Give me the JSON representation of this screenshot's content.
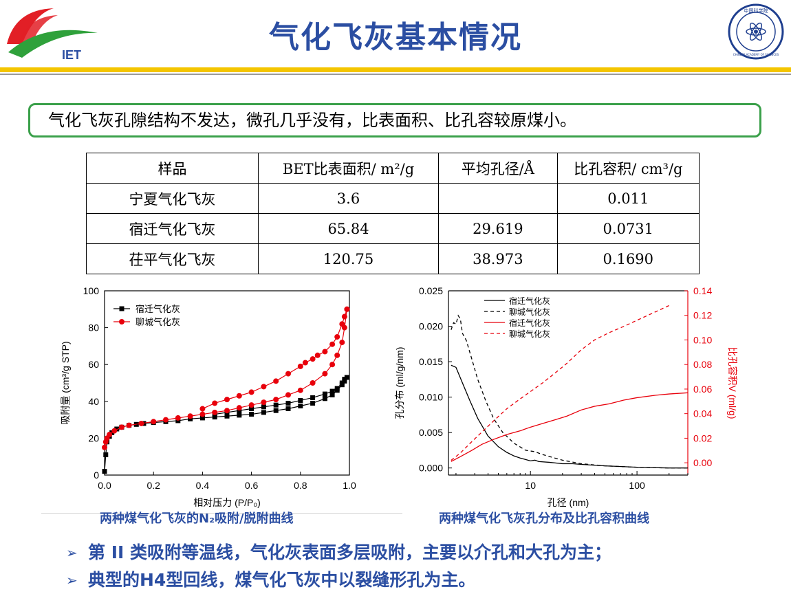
{
  "header": {
    "title": "气化飞灰基本情况",
    "logo_left_text": "IET",
    "logo_right_text": "中国科学院",
    "logo_right_ring": "CHINESE ACADEMY OF SCIENCES"
  },
  "summary": "气化飞灰孔隙结构不发达，微孔几乎没有，比表面积、比孔容较原煤小。",
  "table": {
    "headers": [
      "样品",
      "BET比表面积/ m²/g",
      "平均孔径/Å",
      "比孔容积/ cm³/g"
    ],
    "rows": [
      [
        "宁夏气化飞灰",
        "3.6",
        "",
        "0.011"
      ],
      [
        "宿迁气化飞灰",
        "65.84",
        "29.619",
        "0.0731"
      ],
      [
        "茌平气化飞灰",
        "120.75",
        "38.973",
        "0.1690"
      ]
    ]
  },
  "captions": {
    "left": "两种煤气化飞灰的N₂吸附/脱附曲线",
    "right": "两种煤气化飞灰孔分布及比孔容积曲线"
  },
  "bullets": [
    "第 II 类吸附等温线，气化灰表面多层吸附，主要以介孔和大孔为主；",
    "典型的H4型回线，煤气化飞灰中以裂缝形孔为主。"
  ],
  "chart_data": [
    {
      "type": "scatter",
      "xlabel": "相对压力 (P/P₀)",
      "ylabel": "吸附量 (cm³/g STP)",
      "xlim": [
        0.0,
        1.0
      ],
      "ylim": [
        0,
        100
      ],
      "xticks": [
        "0.0",
        "0.2",
        "0.4",
        "0.6",
        "0.8",
        "1.0"
      ],
      "yticks": [
        "0",
        "20",
        "40",
        "60",
        "80",
        "100"
      ],
      "legend_position": "top-left",
      "series": [
        {
          "name": "宿迁气化灰",
          "color": "#000000",
          "marker": "square",
          "adsorption": {
            "x": [
              0.0,
              0.005,
              0.01,
              0.02,
              0.03,
              0.05,
              0.07,
              0.1,
              0.13,
              0.16,
              0.2,
              0.25,
              0.3,
              0.35,
              0.4,
              0.45,
              0.5,
              0.55,
              0.6,
              0.65,
              0.7,
              0.75,
              0.8,
              0.85,
              0.9,
              0.93,
              0.95,
              0.97,
              0.98,
              0.99
            ],
            "y": [
              2,
              11,
              18,
              21,
              23,
              25,
              26,
              27,
              27.5,
              28,
              28.5,
              29,
              29.5,
              30.5,
              31,
              31.5,
              32,
              32.5,
              33,
              34,
              35,
              36,
              37.5,
              39,
              41.5,
              43.5,
              46,
              49,
              51,
              53
            ]
          },
          "desorption": {
            "x": [
              0.99,
              0.98,
              0.97,
              0.95,
              0.93,
              0.9,
              0.85,
              0.8,
              0.75,
              0.7,
              0.65,
              0.6,
              0.55,
              0.5,
              0.45
            ],
            "y": [
              53,
              52,
              50,
              47,
              45.5,
              44,
              42,
              40.5,
              39,
              38,
              37,
              36,
              35,
              34,
              33
            ]
          }
        },
        {
          "name": "聊城气化灰",
          "color": "#e8000b",
          "marker": "circle",
          "adsorption": {
            "x": [
              0.0,
              0.005,
              0.01,
              0.02,
              0.04,
              0.07,
              0.1,
              0.15,
              0.2,
              0.25,
              0.3,
              0.35,
              0.4,
              0.45,
              0.5,
              0.55,
              0.6,
              0.65,
              0.7,
              0.75,
              0.8,
              0.85,
              0.9,
              0.93,
              0.95,
              0.97,
              0.98,
              0.99
            ],
            "y": [
              15,
              18,
              20,
              22,
              24,
              26,
              27,
              28,
              29,
              30,
              31,
              32,
              33,
              34,
              35,
              36.5,
              38,
              39.5,
              41,
              43.5,
              46,
              50,
              55,
              60,
              65,
              72,
              80,
              90
            ]
          },
          "desorption": {
            "x": [
              0.99,
              0.98,
              0.97,
              0.95,
              0.93,
              0.9,
              0.87,
              0.85,
              0.82,
              0.8,
              0.75,
              0.7,
              0.65,
              0.6,
              0.55,
              0.5,
              0.45,
              0.4
            ],
            "y": [
              90,
              86,
              82,
              75,
              71,
              67,
              65,
              63,
              61,
              59,
              55,
              51,
              48,
              45,
              43,
              41,
              39,
              36
            ]
          }
        }
      ]
    },
    {
      "type": "line",
      "xlabel": "孔径 (nm)",
      "ylabel": "孔分布 (ml/g/nm)",
      "ylabel_right": "比孔容积V (ml/g)",
      "xscale": "log",
      "xlim": [
        1.7,
        300
      ],
      "ylim": [
        -0.001,
        0.025
      ],
      "ylim_right": [
        -0.01,
        0.14
      ],
      "xticks": [
        "10",
        "100"
      ],
      "yticks": [
        "0.000",
        "0.005",
        "0.010",
        "0.015",
        "0.020",
        "0.025"
      ],
      "yticks_right": [
        "0.00",
        "0.02",
        "0.04",
        "0.06",
        "0.08",
        "0.10",
        "0.12",
        "0.14"
      ],
      "legend_position": "top-left",
      "series": [
        {
          "name": "宿迁气化灰",
          "axis": "left",
          "color": "#000000",
          "style": "solid",
          "x": [
            1.8,
            2.0,
            2.3,
            2.7,
            3.2,
            4,
            5,
            6,
            7,
            8,
            9,
            10,
            11,
            12,
            15,
            20,
            25,
            30,
            50,
            100,
            200,
            300
          ],
          "y": [
            0.0145,
            0.0142,
            0.012,
            0.0095,
            0.007,
            0.0045,
            0.003,
            0.0022,
            0.0017,
            0.0014,
            0.0012,
            0.001,
            0.0011,
            0.0009,
            0.0008,
            0.0006,
            0.0006,
            0.0005,
            0.0003,
            0.0001,
            0.0,
            0.0
          ]
        },
        {
          "name": "聊城气化灰",
          "axis": "left",
          "color": "#000000",
          "style": "dashed",
          "x": [
            1.8,
            1.9,
            2.0,
            2.1,
            2.2,
            2.3,
            2.5,
            2.8,
            3.2,
            3.8,
            4.5,
            5.5,
            7,
            9,
            11,
            13,
            16,
            20,
            30,
            50,
            100,
            200,
            300
          ],
          "y": [
            0.0195,
            0.0205,
            0.0203,
            0.0215,
            0.021,
            0.019,
            0.018,
            0.0155,
            0.0125,
            0.0095,
            0.007,
            0.005,
            0.0035,
            0.0025,
            0.0023,
            0.0019,
            0.0015,
            0.0011,
            0.0006,
            0.0003,
            0.0001,
            0.0,
            0.0
          ]
        },
        {
          "name": "宿迁气化灰",
          "axis": "right",
          "color": "#e8000b",
          "style": "solid",
          "x": [
            1.8,
            2.2,
            2.8,
            3.5,
            4.5,
            6,
            8,
            10,
            13,
            17,
            22,
            30,
            40,
            55,
            75,
            100,
            150,
            200,
            300
          ],
          "y": [
            0.001,
            0.005,
            0.01,
            0.015,
            0.019,
            0.023,
            0.026,
            0.029,
            0.032,
            0.035,
            0.038,
            0.043,
            0.046,
            0.048,
            0.051,
            0.053,
            0.055,
            0.056,
            0.057
          ]
        },
        {
          "name": "聊城气化灰",
          "axis": "right",
          "color": "#e8000b",
          "style": "dashed",
          "x": [
            1.8,
            2.2,
            2.8,
            3.5,
            4.5,
            6,
            8,
            10,
            13,
            17,
            22,
            30,
            40,
            55,
            75,
            100,
            150,
            200
          ],
          "y": [
            0.002,
            0.008,
            0.017,
            0.025,
            0.034,
            0.044,
            0.052,
            0.058,
            0.065,
            0.073,
            0.081,
            0.092,
            0.1,
            0.106,
            0.111,
            0.116,
            0.123,
            0.128
          ]
        }
      ]
    }
  ]
}
